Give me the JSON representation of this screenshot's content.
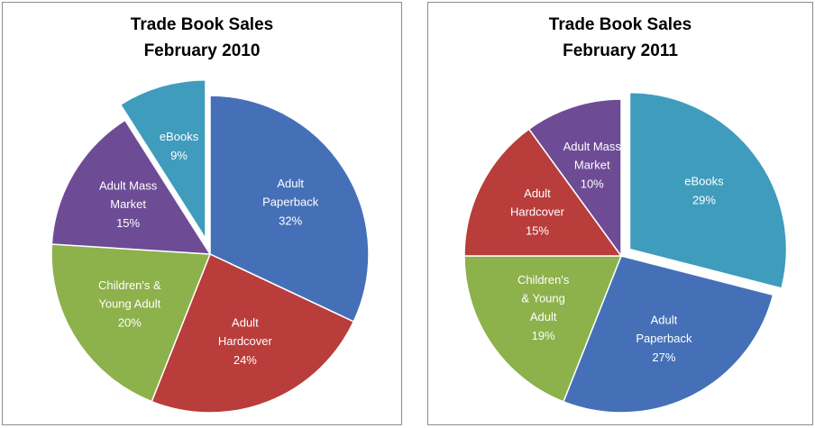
{
  "chart_data": [
    {
      "type": "pie",
      "title": "Trade Book Sales",
      "subtitle": "February 2010",
      "categories": [
        "Adult Paperback",
        "Adult Hardcover",
        "Children's & Young Adult",
        "Adult Mass Market",
        "eBooks"
      ],
      "values": [
        32,
        24,
        20,
        15,
        9
      ],
      "value_labels": [
        "32%",
        "24%",
        "20%",
        "15%",
        "9%"
      ],
      "colors": [
        "#4570b8",
        "#b83d3b",
        "#8db14b",
        "#6d4c95",
        "#3f9cbd"
      ],
      "explode": 4
    },
    {
      "type": "pie",
      "title": "Trade Book Sales",
      "subtitle": "February 2011",
      "categories": [
        "eBooks",
        "Adult Paperback",
        "Children's & Young Adult",
        "Adult Hardcover",
        "Adult Mass Market"
      ],
      "values": [
        29,
        27,
        19,
        15,
        10
      ],
      "value_labels": [
        "29%",
        "27%",
        "19%",
        "15%",
        "10%"
      ],
      "colors": [
        "#3f9cbd",
        "#4570b8",
        "#8db14b",
        "#b83d3b",
        "#6d4c95"
      ],
      "explode": 0
    }
  ]
}
